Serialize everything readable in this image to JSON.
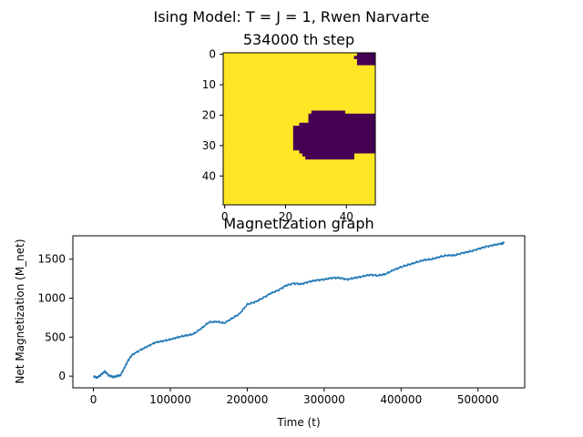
{
  "suptitle": "Ising Model: T = J = 1, Rwen Narvarte",
  "colors": {
    "spin_up": "#fde725",
    "spin_down": "#440154",
    "line": "#1f77b4"
  },
  "chart_data": [
    {
      "type": "heatmap",
      "title": "534000 th step",
      "grid_size": 50,
      "xlim": [
        0,
        49
      ],
      "ylim": [
        49,
        0
      ],
      "xticks": [
        "0",
        "20",
        "40"
      ],
      "xtick_values": [
        0,
        20,
        40
      ],
      "yticks": [
        "0",
        "10",
        "20",
        "30",
        "40"
      ],
      "ytick_values": [
        0,
        10,
        20,
        30,
        40
      ],
      "down_regions": [
        {
          "rows": [
            0,
            0
          ],
          "cols": [
            44,
            49
          ]
        },
        {
          "rows": [
            1,
            1
          ],
          "cols": [
            43,
            49
          ]
        },
        {
          "rows": [
            2,
            3
          ],
          "cols": [
            44,
            49
          ]
        },
        {
          "rows": [
            19,
            19
          ],
          "cols": [
            29,
            39
          ]
        },
        {
          "rows": [
            20,
            22
          ],
          "cols": [
            28,
            49
          ]
        },
        {
          "rows": [
            23,
            23
          ],
          "cols": [
            25,
            49
          ]
        },
        {
          "rows": [
            24,
            31
          ],
          "cols": [
            23,
            49
          ]
        },
        {
          "rows": [
            32,
            32
          ],
          "cols": [
            25,
            49
          ]
        },
        {
          "rows": [
            33,
            33
          ],
          "cols": [
            26,
            42
          ]
        },
        {
          "rows": [
            34,
            34
          ],
          "cols": [
            27,
            42
          ]
        }
      ]
    },
    {
      "type": "line",
      "title": "Magnetization graph",
      "xlabel": "Time (t)",
      "ylabel": "Net Magnetization (M_net)",
      "xlim": [
        -26700,
        560700
      ],
      "ylim": [
        -150,
        1800
      ],
      "xticks": [
        "0",
        "100000",
        "200000",
        "300000",
        "400000",
        "500000"
      ],
      "xtick_values": [
        0,
        100000,
        200000,
        300000,
        400000,
        500000
      ],
      "yticks": [
        "0",
        "500",
        "1000",
        "1500"
      ],
      "ytick_values": [
        0,
        500,
        1000,
        1500
      ],
      "series": [
        {
          "x": [
            0,
            5000,
            10000,
            15000,
            20000,
            25000,
            30000,
            35000,
            40000,
            45000,
            50000,
            60000,
            70000,
            80000,
            90000,
            100000,
            110000,
            120000,
            130000,
            140000,
            150000,
            160000,
            170000,
            180000,
            190000,
            200000,
            210000,
            220000,
            230000,
            240000,
            250000,
            260000,
            270000,
            280000,
            290000,
            300000,
            310000,
            320000,
            330000,
            340000,
            350000,
            360000,
            370000,
            380000,
            390000,
            400000,
            410000,
            420000,
            430000,
            440000,
            450000,
            460000,
            470000,
            480000,
            490000,
            500000,
            510000,
            520000,
            530000,
            534000
          ],
          "y": [
            0,
            -20,
            20,
            60,
            10,
            -10,
            0,
            10,
            100,
            200,
            270,
            330,
            380,
            430,
            450,
            470,
            500,
            520,
            540,
            610,
            690,
            700,
            680,
            740,
            800,
            920,
            950,
            1000,
            1060,
            1100,
            1160,
            1190,
            1180,
            1210,
            1230,
            1240,
            1260,
            1260,
            1240,
            1260,
            1280,
            1300,
            1290,
            1310,
            1360,
            1400,
            1430,
            1460,
            1490,
            1500,
            1530,
            1550,
            1550,
            1580,
            1600,
            1630,
            1660,
            1680,
            1700,
            1710
          ]
        }
      ]
    }
  ]
}
